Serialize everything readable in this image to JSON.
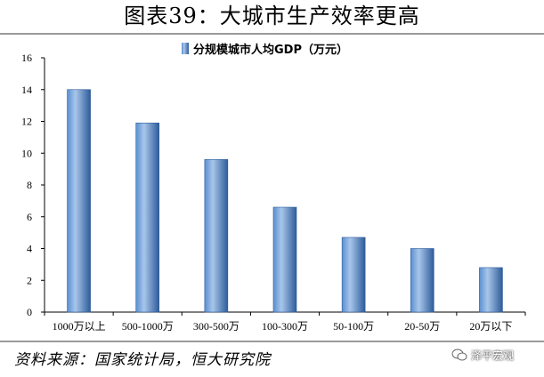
{
  "title": "图表39：大城市生产效率更高",
  "source": "资料来源：国家统计局，恒大研究院",
  "watermark": "泽平宏观",
  "colors": {
    "bar_fill": "#5b8fd0",
    "bar_highlight": "#a8c6ea",
    "bar_edge": "#2e5c9a",
    "rule": "#9a9a9a"
  },
  "chart_data": {
    "type": "bar",
    "categories": [
      "1000万以上",
      "500-1000万",
      "300-500万",
      "100-300万",
      "50-100万",
      "20-50万",
      "20万以下"
    ],
    "series": [
      {
        "name": "分规模城市人均GDP（万元）",
        "values": [
          14.0,
          11.9,
          9.6,
          6.6,
          4.7,
          4.0,
          2.8
        ]
      }
    ],
    "ylim": [
      0,
      16
    ],
    "yticks": [
      "0",
      "2",
      "4",
      "6",
      "8",
      "10",
      "12",
      "14",
      "16"
    ],
    "grid": false,
    "legend": "top-center"
  }
}
